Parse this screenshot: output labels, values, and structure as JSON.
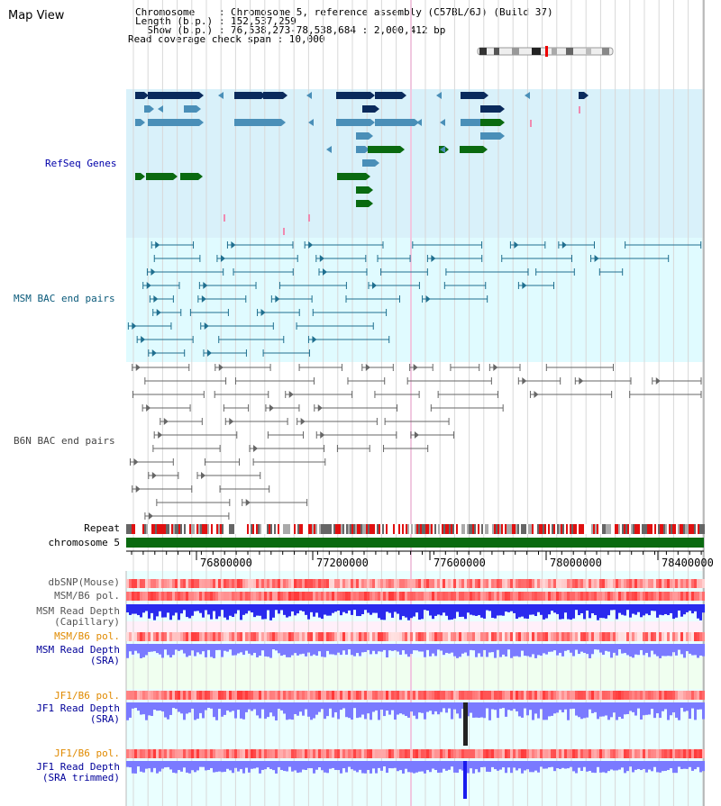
{
  "view": {
    "title": "Map View",
    "info": [
      "Chromosome    : Chromosome 5, reference assembly (C57BL/6J) (Build 37)",
      "Length (b.p.) : 152,537,259",
      "  Show (b.p.) : 76,538,273-78,538,684 : 2,000,412 bp",
      "Read coverage check span : 10,000"
    ]
  },
  "tracks": {
    "refseq": "RefSeq Genes",
    "msm_bac": "MSM BAC end pairs",
    "b6n_bac": "B6N BAC end pairs",
    "repeat": "Repeat",
    "chromosome": "chromosome 5",
    "dbsnp": "dbSNP(Mouse)",
    "msm_b6_pol": "MSM/B6 pol.",
    "msm_depth_cap_1": "MSM Read Depth",
    "msm_depth_cap_2": "(Capillary)",
    "msm_b6_pol_2": "MSM/B6 pol.",
    "msm_depth_sra_1": "MSM Read Depth",
    "msm_depth_sra_2": "(SRA)",
    "jf1_pol": "JF1/B6 pol.",
    "jf1_depth_1": "JF1 Read Depth",
    "jf1_depth_2": "(SRA)",
    "jf1_pol_2": "JF1/B6 pol.",
    "jf1_trim_1": "JF1 Read Depth",
    "jf1_trim_2": "(SRA trimmed)"
  },
  "axis": {
    "ticks": [
      "76800000",
      "77200000",
      "77600000",
      "78000000",
      "78400000"
    ]
  },
  "colors": {
    "refseq_bg": "#d9f1fa",
    "bac_bg": "#e0fbff",
    "b6n_bg": "#ffffff",
    "dark_navy": "#0a2a5c",
    "steel_blue": "#4a8fb8",
    "gene_green": "#0a6a10",
    "msm_label": "#0a5a7a",
    "b6n_label": "#444444",
    "sra_label": "#000099",
    "pol_label": "#e08a00",
    "chromosome_green": "#0a6a10",
    "depth_blue": "#2222ee",
    "depth_light": "#7a7aff"
  }
}
